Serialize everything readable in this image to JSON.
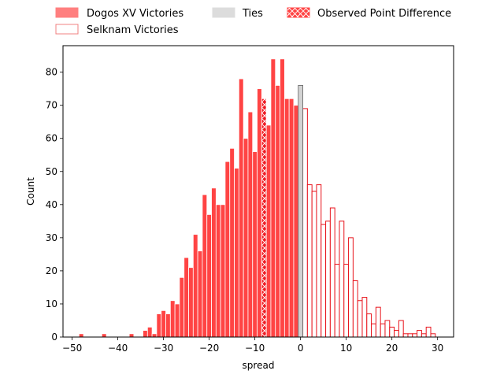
{
  "chart_data": {
    "type": "bar",
    "xlabel": "spread",
    "ylabel": "Count",
    "xlim": [
      -52,
      33.5
    ],
    "ylim": [
      0,
      88
    ],
    "xticks": [
      -50,
      -40,
      -30,
      -20,
      -10,
      0,
      10,
      20,
      30
    ],
    "yticks": [
      0,
      10,
      20,
      30,
      40,
      50,
      60,
      70,
      80
    ],
    "grid": false,
    "legend": {
      "placement": "top",
      "columns": 3
    },
    "colors": {
      "dogos_fill": "#ff4444",
      "dogos_edge": "#ffffff",
      "selknam_edge": "#e8141c",
      "ties_fill": "#d3d3d3",
      "ties_edge": "#606060",
      "observed_fill": "#ee1c24",
      "observed_hatch": "#ffffff"
    },
    "series": [
      {
        "name": "Dogos XV Victories",
        "style": "filled",
        "x": [
          -48,
          -43,
          -37,
          -34,
          -33,
          -32,
          -31,
          -30,
          -29,
          -28,
          -27,
          -26,
          -25,
          -24,
          -23,
          -22,
          -21,
          -20,
          -19,
          -18,
          -17,
          -16,
          -15,
          -14,
          -13,
          -12,
          -11,
          -10,
          -9,
          -8,
          -7,
          -6,
          -5,
          -4,
          -3,
          -2,
          -1
        ],
        "values": [
          1,
          1,
          1,
          2,
          3,
          1,
          7,
          8,
          7,
          11,
          10,
          18,
          24,
          21,
          31,
          26,
          43,
          37,
          45,
          40,
          40,
          53,
          57,
          51,
          78,
          60,
          68,
          56,
          75,
          72,
          64,
          84,
          76,
          84,
          72,
          72,
          70
        ]
      },
      {
        "name": "Selknam Victories",
        "style": "outline",
        "x": [
          1,
          2,
          3,
          4,
          5,
          6,
          7,
          8,
          9,
          10,
          11,
          12,
          13,
          14,
          15,
          16,
          17,
          18,
          19,
          20,
          21,
          22,
          23,
          24,
          25,
          26,
          27,
          28,
          29
        ],
        "values": [
          69,
          46,
          44,
          46,
          34,
          35,
          39,
          22,
          35,
          22,
          30,
          17,
          11,
          12,
          7,
          4,
          9,
          4,
          5,
          3,
          2,
          5,
          1,
          1,
          1,
          2,
          1,
          3,
          1
        ]
      },
      {
        "name": "Ties",
        "style": "filled-grey",
        "x": [
          0
        ],
        "values": [
          76
        ]
      },
      {
        "name": "Observed Point Difference",
        "style": "hatched",
        "x": [
          -8
        ],
        "values": [
          72
        ]
      }
    ]
  }
}
